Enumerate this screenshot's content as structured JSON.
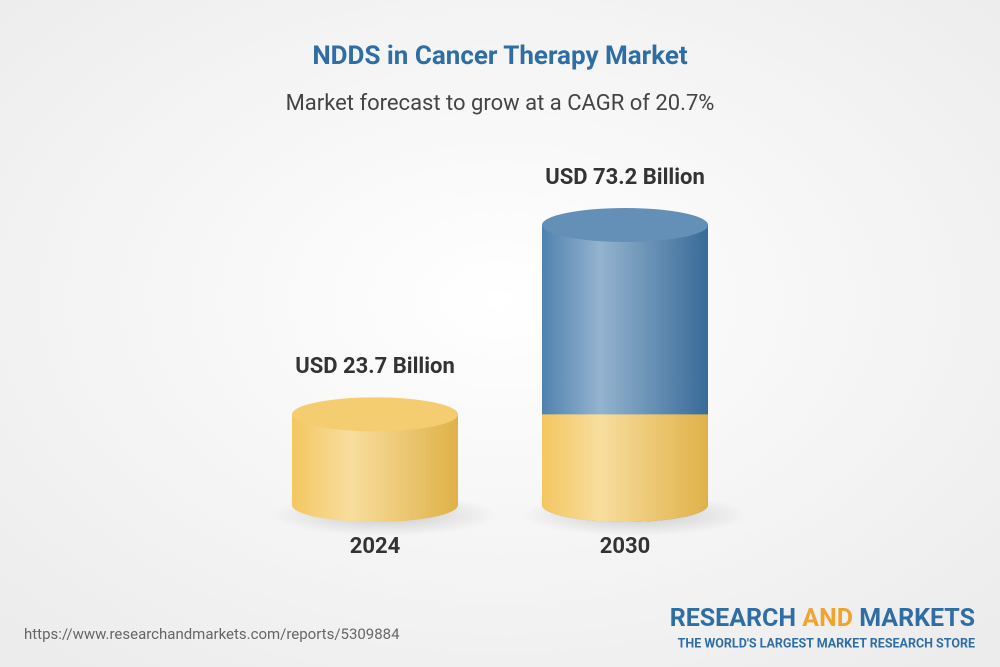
{
  "chart_data": {
    "type": "bar",
    "title": "NDDS in Cancer Therapy Market",
    "subtitle": "Market forecast to grow at a CAGR of 20.7%",
    "categories": [
      "2024",
      "2030"
    ],
    "values": [
      23.7,
      73.2
    ],
    "value_labels": [
      "USD 23.7 Billion",
      "USD 73.2 Billion"
    ],
    "colors": [
      "#f2c14e",
      "#3d74a6"
    ]
  },
  "footer": {
    "url": "https://www.researchandmarkets.com/reports/5309884",
    "logo": {
      "word1": "RESEARCH",
      "word2": "AND",
      "word3": "MARKETS",
      "tagline": "THE WORLD'S LARGEST MARKET RESEARCH STORE"
    }
  }
}
